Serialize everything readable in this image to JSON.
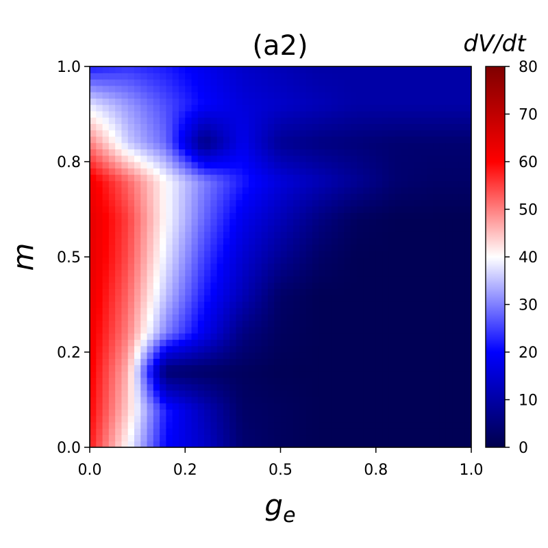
{
  "chart_data": {
    "type": "heatmap",
    "title": "(a2)",
    "xlabel": "g",
    "xlabel_subscript": "e",
    "ylabel": "m",
    "colorbar_label": "dV/dt",
    "xlim": [
      0.0,
      1.0
    ],
    "ylim": [
      0.0,
      1.0
    ],
    "x_ticks": [
      0.0,
      0.25,
      0.5,
      0.75,
      1.0
    ],
    "x_tick_labels": [
      "0.0",
      "0.2",
      "0.5",
      "0.8",
      "1.0"
    ],
    "y_ticks": [
      0.0,
      0.25,
      0.5,
      0.75,
      1.0
    ],
    "y_tick_labels": [
      "0.0",
      "0.2",
      "0.5",
      "0.8",
      "1.0"
    ],
    "colorbar_range": [
      0,
      80
    ],
    "colorbar_ticks": [
      0,
      10,
      20,
      30,
      40,
      50,
      60,
      70,
      80
    ],
    "colorbar_tick_labels": [
      "0",
      "10",
      "20",
      "30",
      "40",
      "50",
      "60",
      "70",
      "80"
    ],
    "colormap": "seismic",
    "colormap_stops": [
      "#00004c",
      "#0000ff",
      "#ffffff",
      "#ff0000",
      "#7f0000"
    ],
    "grid": false,
    "sample_values": {
      "g_e": [
        0.0,
        0.1,
        0.2,
        0.3,
        0.4,
        0.5,
        0.6,
        0.7,
        0.8,
        0.9,
        1.0
      ],
      "m": [
        0.0,
        0.1,
        0.2,
        0.3,
        0.4,
        0.5,
        0.6,
        0.7,
        0.8,
        0.9,
        1.0
      ],
      "z": [
        [
          58,
          40,
          20,
          14,
          4,
          2,
          1,
          1,
          1,
          1,
          1
        ],
        [
          60,
          44,
          22,
          12,
          3,
          2,
          1,
          1,
          1,
          1,
          1
        ],
        [
          61,
          46,
          4,
          3,
          2,
          1,
          1,
          1,
          1,
          1,
          1
        ],
        [
          62,
          50,
          30,
          18,
          6,
          2,
          1,
          1,
          1,
          1,
          1
        ],
        [
          63,
          52,
          35,
          22,
          12,
          3,
          1,
          1,
          1,
          1,
          1
        ],
        [
          64,
          54,
          38,
          25,
          15,
          8,
          3,
          1,
          1,
          1,
          1
        ],
        [
          64,
          55,
          40,
          28,
          18,
          12,
          6,
          2,
          1,
          1,
          1
        ],
        [
          62,
          52,
          40,
          30,
          22,
          16,
          12,
          8,
          4,
          3,
          3
        ],
        [
          50,
          36,
          28,
          6,
          18,
          8,
          6,
          5,
          4,
          4,
          4
        ],
        [
          38,
          32,
          26,
          20,
          16,
          14,
          12,
          10,
          10,
          10,
          10
        ],
        [
          22,
          24,
          22,
          18,
          14,
          12,
          10,
          10,
          10,
          10,
          10
        ]
      ]
    }
  }
}
